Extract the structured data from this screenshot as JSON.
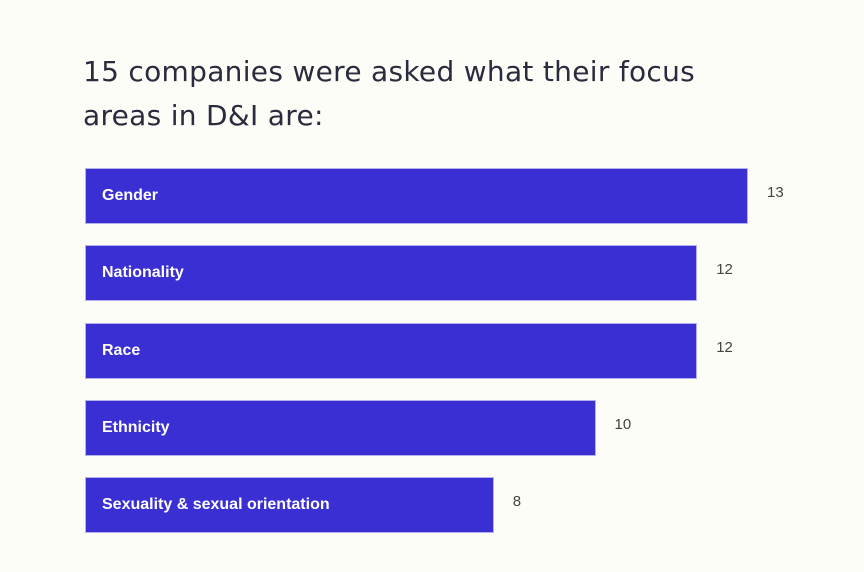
{
  "title": "15 companies were asked what their focus areas in D&I are:",
  "colors": {
    "bar": "#3a2fd2",
    "background": "#fdfdf8",
    "title": "#2a2b3d",
    "value": "#444444"
  },
  "chart_data": {
    "type": "bar",
    "orientation": "horizontal",
    "title": "15 companies were asked what their focus areas in D&I are:",
    "categories": [
      "Gender",
      "Nationality",
      "Race",
      "Ethnicity",
      "Sexuality & sexual orientation"
    ],
    "values": [
      13,
      12,
      12,
      10,
      8
    ],
    "xlabel": "",
    "ylabel": "",
    "xlim": [
      0,
      15
    ],
    "grid": false,
    "legend": null,
    "data_labels": true
  },
  "bars": [
    {
      "label": "Gender",
      "value": "13"
    },
    {
      "label": "Nationality",
      "value": "12"
    },
    {
      "label": "Race",
      "value": "12"
    },
    {
      "label": "Ethnicity",
      "value": "10"
    },
    {
      "label": "Sexuality & sexual orientation",
      "value": "8"
    }
  ]
}
